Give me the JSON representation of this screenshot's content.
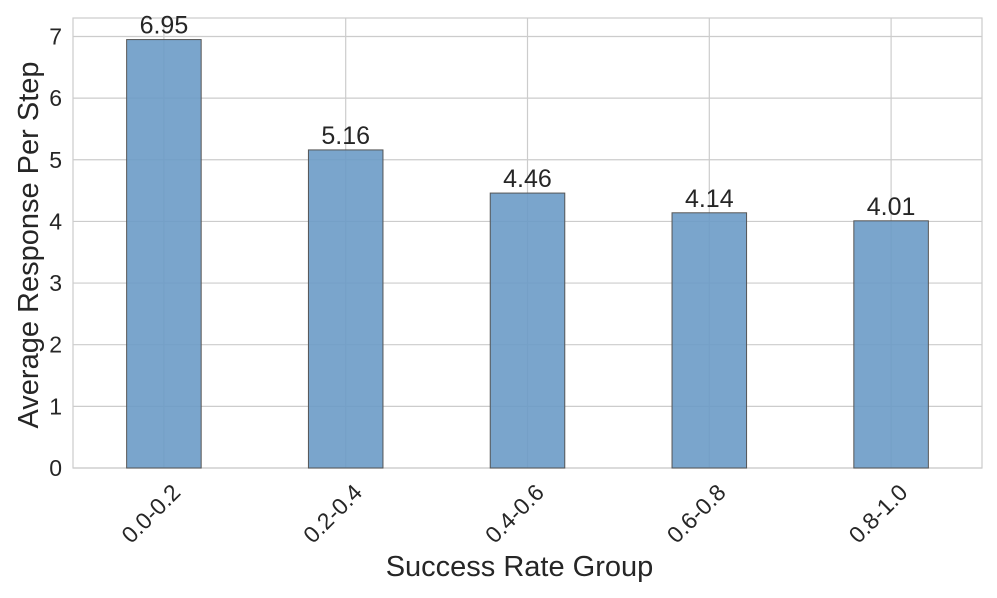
{
  "chart_data": {
    "type": "bar",
    "title": "",
    "xlabel": "Success Rate Group",
    "ylabel": "Average Response Per Step",
    "categories": [
      "0.0-0.2",
      "0.2-0.4",
      "0.4-0.6",
      "0.6-0.8",
      "0.8-1.0"
    ],
    "values": [
      6.95,
      5.16,
      4.46,
      4.14,
      4.01
    ],
    "value_labels": [
      "6.95",
      "5.16",
      "4.46",
      "4.14",
      "4.01"
    ],
    "yticks": [
      0,
      1,
      2,
      3,
      4,
      5,
      6,
      7
    ],
    "ylim": [
      0,
      7.3
    ],
    "grid": true,
    "legend": "none",
    "colors": {
      "bar": "#6b9bc7",
      "bar_edge": "#555555",
      "grid": "#cccccc",
      "text": "#262626",
      "background": "#ffffff"
    }
  }
}
